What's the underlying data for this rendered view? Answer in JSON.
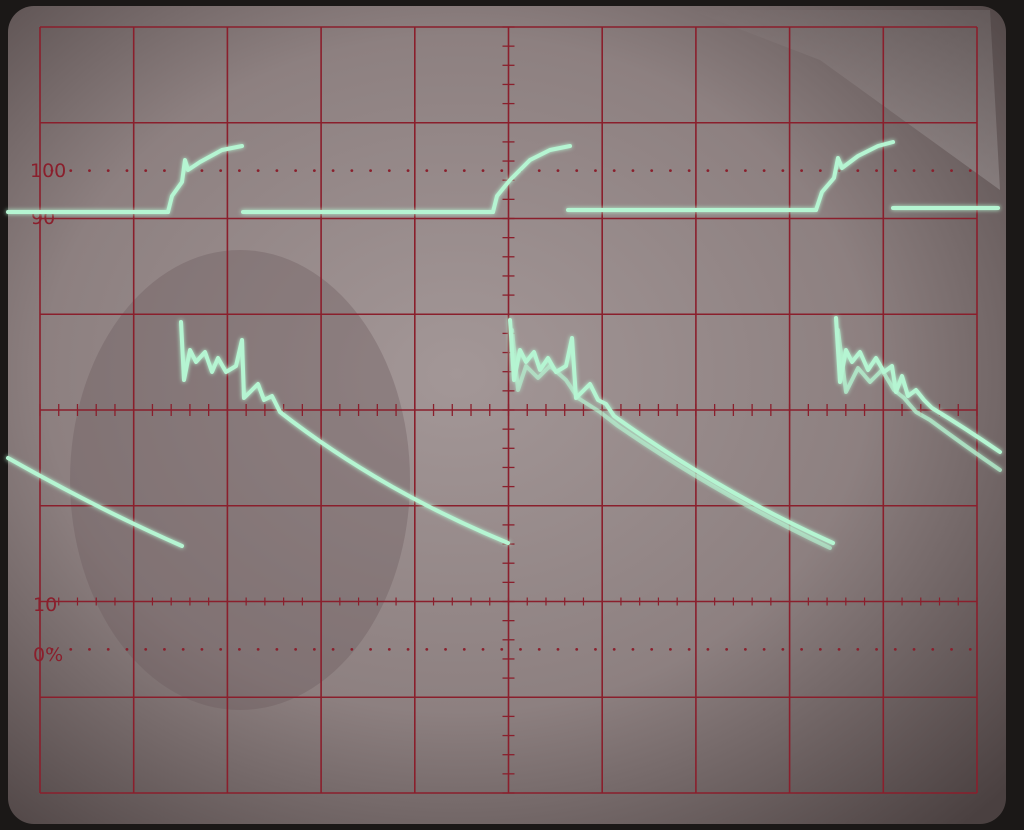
{
  "graticule_labels": {
    "hundred": "100",
    "ninety": "90",
    "ten": "10",
    "zero_percent": "0%"
  },
  "colors": {
    "screen_bg": "#8e8282",
    "screen_edge": "#3a3231",
    "bezel": "#1b1817",
    "grid": "#8a1f2c",
    "grid_label": "#8a1f2c",
    "trace": "#b5f5d2",
    "trace_glow": "#6fe0a8"
  },
  "graticule": {
    "major_divisions_x": 10,
    "major_divisions_y": 8,
    "minor_ticks_per_division": 5
  }
}
